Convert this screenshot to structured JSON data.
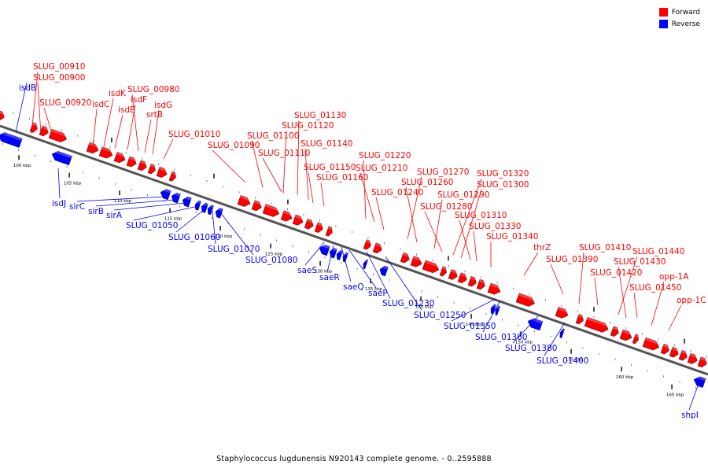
{
  "colors": {
    "forward": "#ff0000",
    "reverse": "#0000ff",
    "backbone": "#555555",
    "tick": "#000000"
  },
  "legend": [
    {
      "label": "Forward",
      "color": "#ff0000"
    },
    {
      "label": "Reverse",
      "color": "#0000ff"
    }
  ],
  "caption": "Staphylococcus lugdunensis N920143 complete genome. - 0..2595888",
  "tick_labels": [
    "100 kbp",
    "105 kbp",
    "110 kbp",
    "115 kbp",
    "120 kbp",
    "125 kbp",
    "130 kbp",
    "135 kbp",
    "140 kbp",
    "145 kbp",
    "150 kbp",
    "155 kbp",
    "160 kbp",
    "165 kbp"
  ],
  "forward_genes": [
    {
      "name": "SLUG_00910"
    },
    {
      "name": "SLUG_00900"
    },
    {
      "name": "SLUG_00920"
    },
    {
      "name": "isdC"
    },
    {
      "name": "isdK"
    },
    {
      "name": "isdE"
    },
    {
      "name": "isdF"
    },
    {
      "name": "SLUG_00980"
    },
    {
      "name": "srtB"
    },
    {
      "name": "isdG"
    },
    {
      "name": "SLUG_01010"
    },
    {
      "name": "SLUG_01090"
    },
    {
      "name": "SLUG_01100"
    },
    {
      "name": "SLUG_01110"
    },
    {
      "name": "SLUG_01120"
    },
    {
      "name": "SLUG_01130"
    },
    {
      "name": "SLUG_01140"
    },
    {
      "name": "SLUG_01150"
    },
    {
      "name": "SLUG_01160"
    },
    {
      "name": "SLUG_01220"
    },
    {
      "name": "SLUG_01210"
    },
    {
      "name": "SLUG_01240"
    },
    {
      "name": "SLUG_01270"
    },
    {
      "name": "SLUG_01260"
    },
    {
      "name": "SLUG_01290"
    },
    {
      "name": "SLUG_01280"
    },
    {
      "name": "SLUG_01320"
    },
    {
      "name": "SLUG_01300"
    },
    {
      "name": "SLUG_01310"
    },
    {
      "name": "SLUG_01330"
    },
    {
      "name": "SLUG_01340"
    },
    {
      "name": "thrZ"
    },
    {
      "name": "SLUG_01390"
    },
    {
      "name": "SLUG_01410"
    },
    {
      "name": "SLUG_01420"
    },
    {
      "name": "SLUG_01440"
    },
    {
      "name": "SLUG_01430"
    },
    {
      "name": "SLUG_01450"
    },
    {
      "name": "opp-1A"
    },
    {
      "name": "opp-1C"
    }
  ],
  "reverse_genes": [
    {
      "name": "isdB"
    },
    {
      "name": "isdJ"
    },
    {
      "name": "sirC"
    },
    {
      "name": "sirB"
    },
    {
      "name": "sirA"
    },
    {
      "name": "SLUG_01050"
    },
    {
      "name": "SLUG_01060"
    },
    {
      "name": "SLUG_01070"
    },
    {
      "name": "SLUG_01080"
    },
    {
      "name": "saeS"
    },
    {
      "name": "saeR"
    },
    {
      "name": "saeQ"
    },
    {
      "name": "saeP"
    },
    {
      "name": "SLUG_01230"
    },
    {
      "name": "SLUG_01250"
    },
    {
      "name": "SLUG_01350"
    },
    {
      "name": "SLUG_01360"
    },
    {
      "name": "SLUG_01380"
    },
    {
      "name": "SLUG_01400"
    },
    {
      "name": "shpI"
    }
  ]
}
